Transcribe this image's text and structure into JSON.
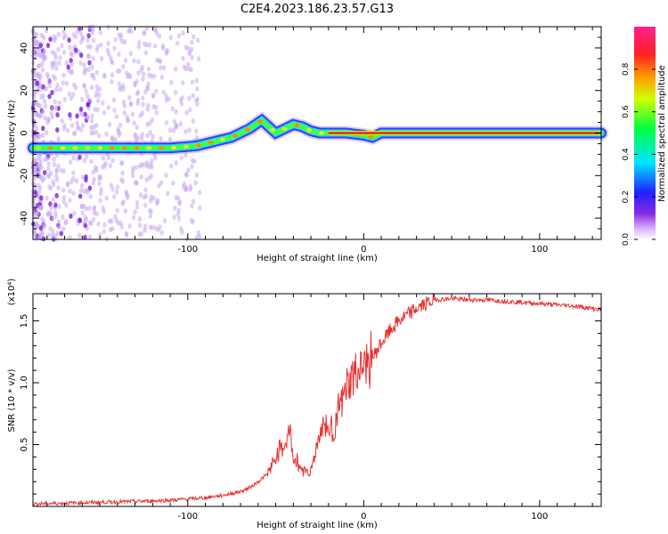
{
  "figure": {
    "title": "C2E4.2023.186.23.57.G13"
  },
  "chart_data": [
    {
      "type": "heatmap",
      "title": "C2E4.2023.186.23.57.G13",
      "xlabel": "Height of straight line (km)",
      "ylabel": "Frequency (Hz)",
      "xlim": [
        -188,
        135
      ],
      "ylim": [
        -50,
        50
      ],
      "x_ticks": [
        -100,
        0,
        100
      ],
      "x_ticklabels": [
        "-100",
        "0",
        "100"
      ],
      "y_ticks": [
        -40,
        -20,
        0,
        20,
        40
      ],
      "y_ticklabels": [
        "-40",
        "-20",
        "0",
        "20",
        "40"
      ],
      "colorbar": {
        "label": "Normalized spectral amplitude",
        "range": [
          0,
          1
        ],
        "ticks": [
          0.0,
          0.2,
          0.4,
          0.6,
          0.8
        ],
        "ticklabels": [
          "0.0",
          "0.2",
          "0.4",
          "0.6",
          "0.8"
        ],
        "colormap": "rainbow (white-violet-blue-cyan-green-yellow-orange-red-magenta)"
      },
      "ridge": {
        "x": [
          -188,
          -170,
          -150,
          -130,
          -110,
          -95,
          -85,
          -75,
          -65,
          -58,
          -50,
          -45,
          -40,
          -35,
          -30,
          -25,
          -20,
          -10,
          0,
          5,
          10,
          20,
          40,
          60,
          80,
          100,
          120,
          135
        ],
        "frequency": [
          -7,
          -7,
          -7,
          -7,
          -7,
          -6,
          -4,
          -2,
          2,
          6,
          0,
          2,
          4,
          3,
          1,
          0,
          0,
          0,
          -1,
          -2,
          0,
          0,
          0,
          0,
          0,
          0,
          0,
          0
        ]
      },
      "grid": false,
      "legend": "none"
    },
    {
      "type": "line",
      "xlabel": "Height of straight line (km)",
      "ylabel": "SNR (10 * v/v)",
      "y_multiplier": "(x10⁴)",
      "xlim": [
        -188,
        135
      ],
      "ylim": [
        0,
        1.72
      ],
      "x_ticks": [
        -100,
        0,
        100
      ],
      "x_ticklabels": [
        "-100",
        "0",
        "100"
      ],
      "y_ticks": [
        0.5,
        1.0,
        1.5
      ],
      "y_ticklabels": [
        "0.5",
        "1.0",
        "1.5"
      ],
      "series_color": "#e83030",
      "x": [
        -188,
        -160,
        -130,
        -110,
        -90,
        -80,
        -70,
        -65,
        -60,
        -55,
        -50,
        -45,
        -42,
        -40,
        -35,
        -30,
        -25,
        -22,
        -20,
        -17,
        -15,
        -12,
        -10,
        -5,
        0,
        5,
        10,
        15,
        20,
        30,
        40,
        50,
        60,
        70,
        80,
        90,
        100,
        110,
        120,
        130,
        135
      ],
      "y": [
        0.02,
        0.03,
        0.04,
        0.05,
        0.07,
        0.09,
        0.12,
        0.15,
        0.2,
        0.26,
        0.4,
        0.5,
        0.6,
        0.4,
        0.3,
        0.28,
        0.6,
        0.68,
        0.6,
        0.62,
        0.75,
        0.85,
        0.95,
        1.05,
        1.12,
        1.2,
        1.32,
        1.42,
        1.5,
        1.6,
        1.67,
        1.68,
        1.67,
        1.67,
        1.66,
        1.65,
        1.64,
        1.63,
        1.62,
        1.6,
        1.59
      ]
    }
  ]
}
